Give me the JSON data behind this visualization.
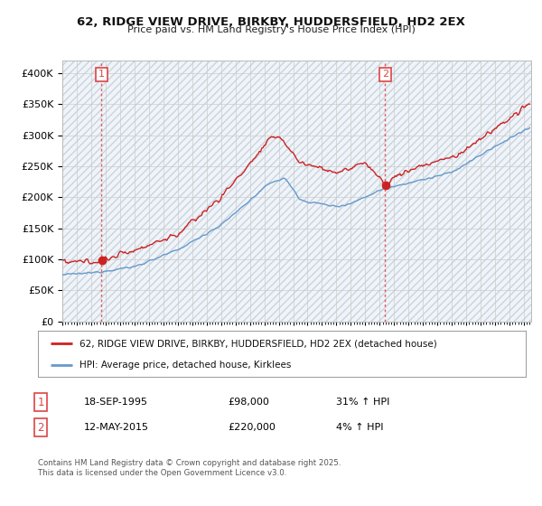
{
  "title1": "62, RIDGE VIEW DRIVE, BIRKBY, HUDDERSFIELD, HD2 2EX",
  "title2": "Price paid vs. HM Land Registry's House Price Index (HPI)",
  "ylim": [
    0,
    420000
  ],
  "yticks": [
    0,
    50000,
    100000,
    150000,
    200000,
    250000,
    300000,
    350000,
    400000
  ],
  "xlim_start": 1993.0,
  "xlim_end": 2025.5,
  "bg_color": "#ffffff",
  "plot_bg_color": "#ffffff",
  "hatch_color": "#e8eef5",
  "grid_color": "#cccccc",
  "sale1_date": 1995.72,
  "sale1_price": 98000,
  "sale1_label": "1",
  "sale2_date": 2015.37,
  "sale2_price": 220000,
  "sale2_label": "2",
  "line1_color": "#cc2222",
  "line2_color": "#6699cc",
  "marker_color": "#cc2222",
  "vline_color": "#dd4444",
  "legend_line1": "62, RIDGE VIEW DRIVE, BIRKBY, HUDDERSFIELD, HD2 2EX (detached house)",
  "legend_line2": "HPI: Average price, detached house, Kirklees",
  "note1_box": "1",
  "note1_date": "18-SEP-1995",
  "note1_price": "£98,000",
  "note1_hpi": "31% ↑ HPI",
  "note2_box": "2",
  "note2_date": "12-MAY-2015",
  "note2_price": "£220,000",
  "note2_hpi": "4% ↑ HPI",
  "footer": "Contains HM Land Registry data © Crown copyright and database right 2025.\nThis data is licensed under the Open Government Licence v3.0."
}
